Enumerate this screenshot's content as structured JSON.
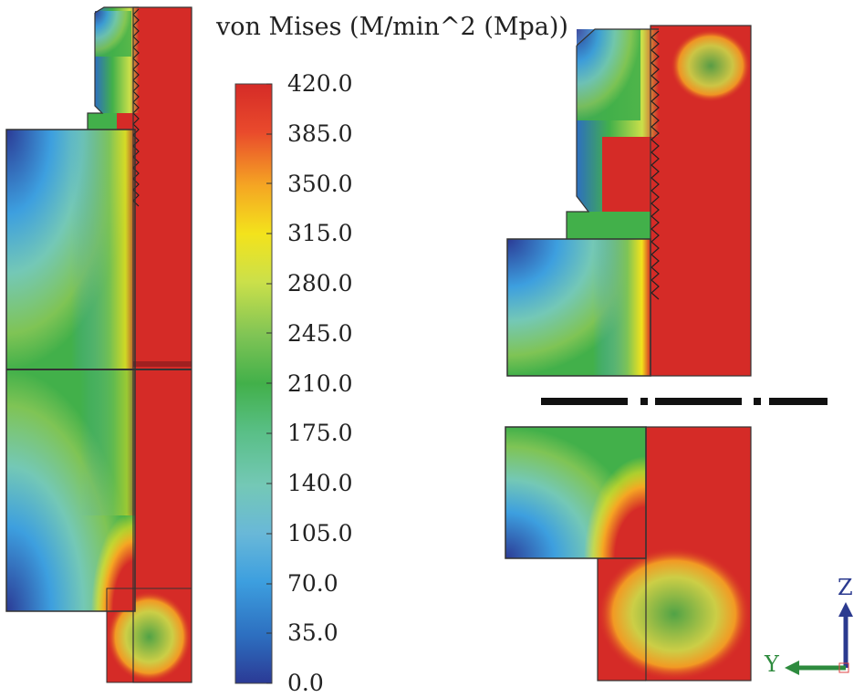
{
  "legend": {
    "title": "von Mises (M/min^2 (Mpa))",
    "ticks": [
      "420.0",
      "385.0",
      "350.0",
      "315.0",
      "280.0",
      "245.0",
      "210.0",
      "175.0",
      "140.0",
      "105.0",
      "70.0",
      "35.0",
      "0.0"
    ],
    "gradient": [
      "#d52b27",
      "#e94a2c",
      "#f5a623",
      "#f3e31c",
      "#cbe04a",
      "#7fc455",
      "#42b04a",
      "#59bf86",
      "#74c8b6",
      "#69b8d8",
      "#3d9fdf",
      "#2d6fc0",
      "#2b3a95"
    ]
  },
  "triad": {
    "z_label": "Z",
    "y_label": "Y",
    "z_color": "#2b3a8f",
    "y_color": "#2e8b3e"
  },
  "colors": {
    "red": "#d52b27",
    "blue": "#2b3a95"
  }
}
